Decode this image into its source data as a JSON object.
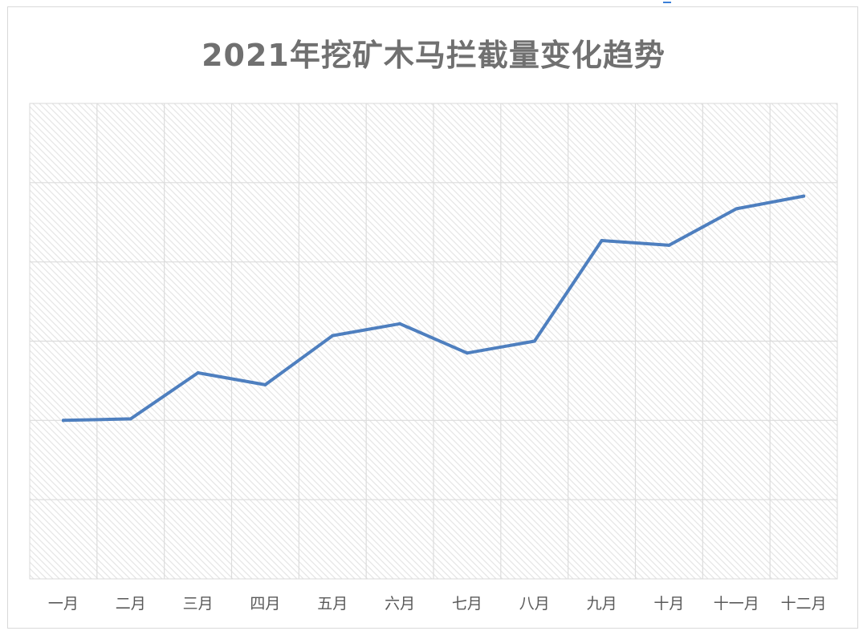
{
  "chart_data": {
    "type": "line",
    "title": "2021年挖矿木马拦截量变化趋势",
    "categories": [
      "一月",
      "二月",
      "三月",
      "四月",
      "五月",
      "六月",
      "七月",
      "八月",
      "九月",
      "十月",
      "十一月",
      "十二月"
    ],
    "series": [
      {
        "values": [
          2.0,
          2.02,
          2.6,
          2.45,
          3.07,
          3.22,
          2.85,
          3.0,
          4.27,
          4.21,
          4.67,
          4.83
        ],
        "color": "#4e7fbf"
      }
    ],
    "ylim": [
      0,
      6
    ],
    "y_gridlines": 6,
    "grid": true,
    "y_tick_labels_shown": false,
    "plot_background": "hatched-light-gray"
  }
}
